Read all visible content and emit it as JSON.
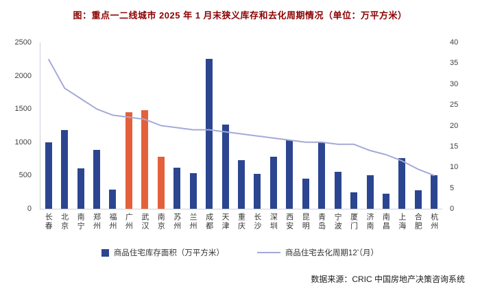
{
  "title": "图：重点一二线城市 2025 年 1 月末狭义库存和去化周期情况（单位：万平方米）",
  "source": "数据来源：CRIC 中国房地产决策咨询系统",
  "legend": {
    "bars": "商品住宅库存面积（万平方米）",
    "line": "商品住宅去化周期12’（月）"
  },
  "colors": {
    "bar": "#2B4590",
    "bar_highlight": "#E4603A",
    "line": "#A4A9D6",
    "title": "#8B0000",
    "axis_text": "#404040"
  },
  "chart_data": {
    "type": "bar",
    "subtype": "bar+line dual axis",
    "title": "图：重点一二线城市 2025 年 1 月末狭义库存和去化周期情况（单位：万平方米）",
    "categories": [
      "长春",
      "北京",
      "南宁",
      "郑州",
      "福州",
      "广州",
      "武汉",
      "南京",
      "苏州",
      "兰州",
      "成都",
      "天津",
      "重庆",
      "长沙",
      "深圳",
      "西安",
      "昆明",
      "青岛",
      "宁波",
      "厦门",
      "济南",
      "南昌",
      "上海",
      "合肥",
      "杭州"
    ],
    "series": [
      {
        "name": "商品住宅库存面积（万平方米）",
        "type": "bar",
        "axis": "left",
        "values": [
          1000,
          1180,
          610,
          880,
          290,
          1450,
          1480,
          780,
          620,
          540,
          2250,
          1270,
          730,
          520,
          780,
          1030,
          450,
          1000,
          560,
          250,
          500,
          230,
          760,
          280,
          500
        ]
      },
      {
        "name": "商品住宅去化周期12’（月）",
        "type": "line",
        "axis": "right",
        "values": [
          36,
          29,
          26.5,
          24,
          22.5,
          22,
          21.5,
          20,
          19.5,
          19,
          19,
          18.5,
          18,
          17.5,
          17,
          16.5,
          16,
          16,
          15.5,
          15.5,
          14,
          13,
          11.5,
          9.5,
          8
        ]
      }
    ],
    "highlighted_categories": [
      "广州",
      "武汉",
      "南京"
    ],
    "left_axis": {
      "min": 0,
      "max": 2500,
      "ticks": [
        0,
        500,
        1000,
        1500,
        2000,
        2500
      ]
    },
    "right_axis": {
      "min": 0,
      "max": 40,
      "ticks": [
        0,
        5,
        10,
        15,
        20,
        25,
        30,
        35,
        40
      ]
    },
    "grid": false,
    "legend_position": "bottom"
  }
}
